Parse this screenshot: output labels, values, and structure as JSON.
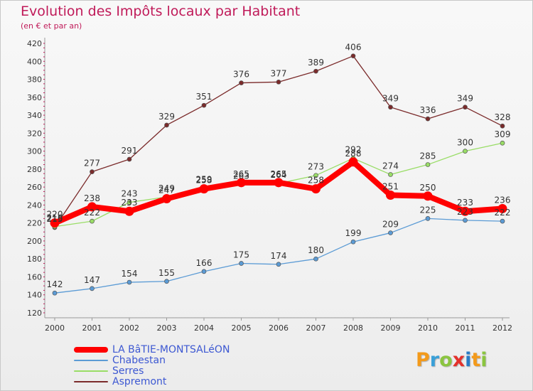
{
  "title": "Evolution des Impôts locaux par Habitant",
  "subtitle": "(en € et par an)",
  "logo": {
    "text": "Proxiti"
  },
  "chart_data": {
    "type": "line",
    "x": [
      "2000",
      "2001",
      "2002",
      "2003",
      "2004",
      "2005",
      "2006",
      "2007",
      "2008",
      "2009",
      "2010",
      "2011",
      "2012"
    ],
    "ylim": [
      120,
      420
    ],
    "yticks": [
      120,
      140,
      160,
      180,
      200,
      220,
      240,
      260,
      280,
      300,
      320,
      340,
      360,
      380,
      400,
      420
    ],
    "grid": false,
    "legend_position": "bottom-left",
    "series": [
      {
        "name": "Aspremont",
        "color": "#7b2b2b",
        "values": [
          215,
          277,
          291,
          329,
          351,
          376,
          377,
          389,
          406,
          349,
          336,
          349,
          328
        ]
      },
      {
        "name": "Serres",
        "color": "#99dd66",
        "values": [
          216,
          222,
          243,
          249,
          259,
          263,
          264,
          273,
          292,
          274,
          285,
          300,
          309
        ]
      },
      {
        "name": "Chabestan",
        "color": "#5b9bd5",
        "values": [
          142,
          147,
          154,
          155,
          166,
          175,
          174,
          180,
          199,
          209,
          225,
          223,
          222
        ]
      },
      {
        "name": "LA BâTIE-MONTSALéON",
        "color": "#ff0000",
        "values": [
          220,
          238,
          233,
          247,
          258,
          265,
          265,
          258,
          288,
          251,
          250,
          233,
          236
        ]
      }
    ]
  },
  "legend": [
    {
      "name": "LA BâTIE-MONTSALéON",
      "color": "#ff0000",
      "width": 8
    },
    {
      "name": "Chabestan",
      "color": "#5b9bd5",
      "width": 2
    },
    {
      "name": "Serres",
      "color": "#99dd66",
      "width": 2
    },
    {
      "name": "Aspremont",
      "color": "#7b2b2b",
      "width": 2
    }
  ]
}
